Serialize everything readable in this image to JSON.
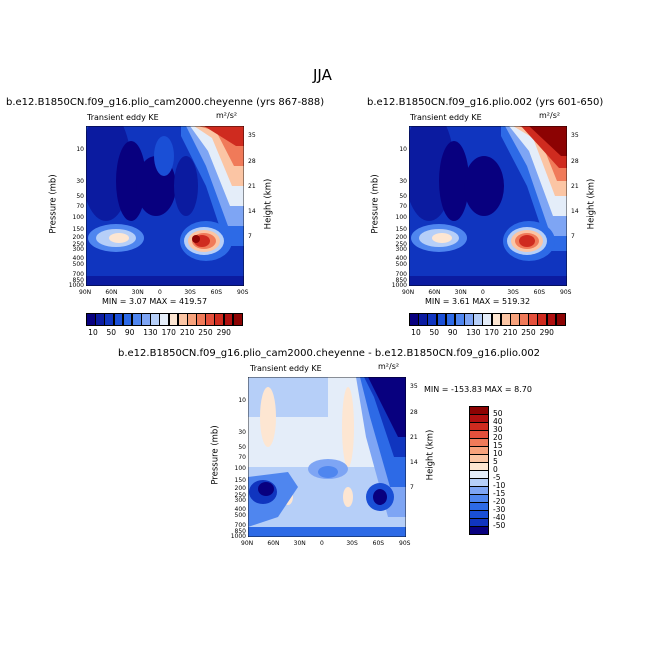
{
  "title": "JJA",
  "panels": [
    {
      "title": "b.e12.B1850CN.f09_g16.plio_cam2000.cheyenne (yrs 867-888)",
      "left_label": "Transient eddy KE",
      "units": "m²/s²",
      "min_max_text": "MIN =    3.07   MAX =  419.57",
      "min": 3.07,
      "max": 419.57
    },
    {
      "title": "b.e12.B1850CN.f09_g16.plio.002 (yrs 601-650)",
      "left_label": "Transient eddy KE",
      "units": "m²/s²",
      "min_max_text": "MIN =    3.61   MAX =  519.32",
      "min": 3.61,
      "max": 519.32
    },
    {
      "title": "b.e12.B1850CN.f09_g16.plio_cam2000.cheyenne - b.e12.B1850CN.f09_g16.plio.002",
      "left_label": "Transient eddy KE",
      "units": "m²/s²",
      "min_max_text": "MIN = -153.83   MAX =    8.70",
      "min": -153.83,
      "max": 8.7
    }
  ],
  "axes": {
    "ylabel": "Pressure (mb)",
    "ylabel_right": "Height (km)",
    "pressure_ticks": [
      "10",
      "30",
      "50",
      "70",
      "100",
      "150",
      "200",
      "250",
      "300",
      "400",
      "500",
      "700",
      "850",
      "1000"
    ],
    "height_ticks": [
      "35",
      "28",
      "21",
      "14",
      "7"
    ],
    "lat_ticks": [
      "90N",
      "60N",
      "30N",
      "0",
      "30S",
      "60S",
      "90S"
    ]
  },
  "colorbar_abs": {
    "labels": [
      "10",
      "50",
      "90",
      "130",
      "170",
      "210",
      "250",
      "290"
    ],
    "colors": [
      "#08007f",
      "#0b1ba0",
      "#1035bf",
      "#1a4fd6",
      "#2d6ae6",
      "#4f86ef",
      "#7ea5f4",
      "#b6cff8",
      "#e4edf9",
      "#fde6d2",
      "#fbc5a4",
      "#f7a27c",
      "#f07a59",
      "#e4503c",
      "#cf2b1f",
      "#b01010",
      "#8c0303"
    ]
  },
  "colorbar_diff": {
    "labels": [
      "50",
      "40",
      "30",
      "20",
      "15",
      "10",
      "5",
      "0",
      "-5",
      "-10",
      "-15",
      "-20",
      "-30",
      "-40",
      "-50"
    ],
    "colors": [
      "#8c0303",
      "#b01010",
      "#cf2b1f",
      "#e4503c",
      "#f07a59",
      "#f7a27c",
      "#fbc5a4",
      "#fde6d2",
      "#e4edf9",
      "#b6cff8",
      "#7ea5f4",
      "#4f86ef",
      "#2d6ae6",
      "#1a4fd6",
      "#1035bf",
      "#08007f"
    ]
  },
  "chart_data": [
    {
      "type": "heatmap",
      "title": "b.e12.B1850CN.f09_g16.plio_cam2000.cheyenne (yrs 867-888)",
      "xlabel": "",
      "ylabel": "Pressure (mb)",
      "x": [
        "90N",
        "60N",
        "30N",
        "0",
        "30S",
        "60S",
        "90S"
      ],
      "y_pressure_mb": [
        10,
        30,
        50,
        70,
        100,
        150,
        200,
        250,
        300,
        400,
        500,
        700,
        850,
        1000
      ],
      "value_range": [
        3.07,
        419.57
      ],
      "units": "m²/s²",
      "features": [
        {
          "lat": 60,
          "pressure_mb": 250,
          "value": 170
        },
        {
          "lat": -40,
          "pressure_mb": 250,
          "value": 290
        },
        {
          "lat": -65,
          "pressure_mb": 5,
          "value": 290
        }
      ]
    },
    {
      "type": "heatmap",
      "title": "b.e12.B1850CN.f09_g16.plio.002 (yrs 601-650)",
      "xlabel": "",
      "ylabel": "Pressure (mb)",
      "x": [
        "90N",
        "60N",
        "30N",
        "0",
        "30S",
        "60S",
        "90S"
      ],
      "y_pressure_mb": [
        10,
        30,
        50,
        70,
        100,
        150,
        200,
        250,
        300,
        400,
        500,
        700,
        850,
        1000
      ],
      "value_range": [
        3.61,
        519.32
      ],
      "units": "m²/s²",
      "features": [
        {
          "lat": 60,
          "pressure_mb": 250,
          "value": 170
        },
        {
          "lat": -40,
          "pressure_mb": 250,
          "value": 290
        },
        {
          "lat": -65,
          "pressure_mb": 5,
          "value": 290
        }
      ]
    },
    {
      "type": "heatmap",
      "title": "b.e12.B1850CN.f09_g16.plio_cam2000.cheyenne - b.e12.B1850CN.f09_g16.plio.002",
      "xlabel": "",
      "ylabel": "Pressure (mb)",
      "x": [
        "90N",
        "60N",
        "30N",
        "0",
        "30S",
        "60S",
        "90S"
      ],
      "y_pressure_mb": [
        10,
        30,
        50,
        70,
        100,
        150,
        200,
        250,
        300,
        400,
        500,
        700,
        850,
        1000
      ],
      "value_range": [
        -153.83,
        8.7
      ],
      "units": "m²/s²",
      "features": [
        {
          "lat": -70,
          "pressure_mb": 10,
          "value": -50
        },
        {
          "lat": -60,
          "pressure_mb": 300,
          "value": -40
        },
        {
          "lat": 75,
          "pressure_mb": 250,
          "value": -40
        },
        {
          "lat": 20,
          "pressure_mb": 100,
          "value": -15
        },
        {
          "lat": 35,
          "pressure_mb": 300,
          "value": 5
        },
        {
          "lat": -25,
          "pressure_mb": 300,
          "value": 5
        }
      ]
    }
  ]
}
